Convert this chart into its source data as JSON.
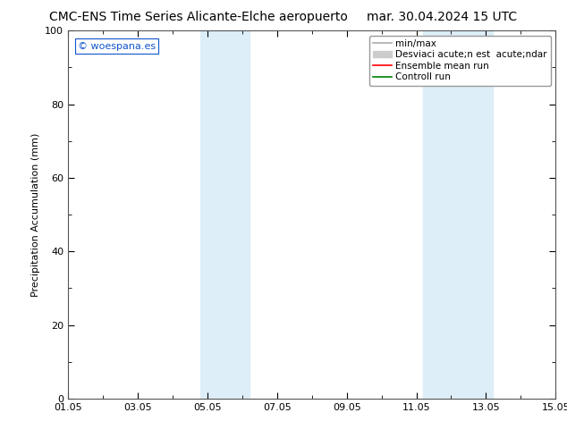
{
  "title_left": "CMC-ENS Time Series Alicante-Elche aeropuerto",
  "title_right": "mar. 30.04.2024 15 UTC",
  "ylabel": "Precipitation Accumulation (mm)",
  "ylim": [
    0,
    100
  ],
  "xlim_start": 0,
  "xlim_end": 14,
  "xtick_positions": [
    0,
    2,
    4,
    6,
    8,
    10,
    12,
    14
  ],
  "xtick_labels": [
    "01.05",
    "03.05",
    "05.05",
    "07.05",
    "09.05",
    "11.05",
    "13.05",
    "15.05"
  ],
  "ytick_positions": [
    0,
    20,
    40,
    60,
    80,
    100
  ],
  "ytick_labels": [
    "0",
    "20",
    "40",
    "60",
    "80",
    "100"
  ],
  "shaded_regions": [
    {
      "xmin": 3.8,
      "xmax": 5.2,
      "color": "#ddeef8"
    },
    {
      "xmin": 10.2,
      "xmax": 12.2,
      "color": "#ddeef8"
    }
  ],
  "watermark_text": "© woespana.es",
  "legend_label_minmax": "min/max",
  "legend_label_std": "Desviaci acute;n est  acute;ndar",
  "legend_label_ensemble": "Ensemble mean run",
  "legend_label_control": "Controll run",
  "legend_color_minmax": "#aaaaaa",
  "legend_color_std": "#cccccc",
  "legend_color_ensemble": "#ff0000",
  "legend_color_control": "#008000",
  "background_color": "#ffffff",
  "plot_bg_color": "#ffffff",
  "title_fontsize": 10,
  "axis_label_fontsize": 8,
  "tick_fontsize": 8,
  "legend_fontsize": 7.5,
  "watermark_fontsize": 8,
  "watermark_color": "#1155cc"
}
